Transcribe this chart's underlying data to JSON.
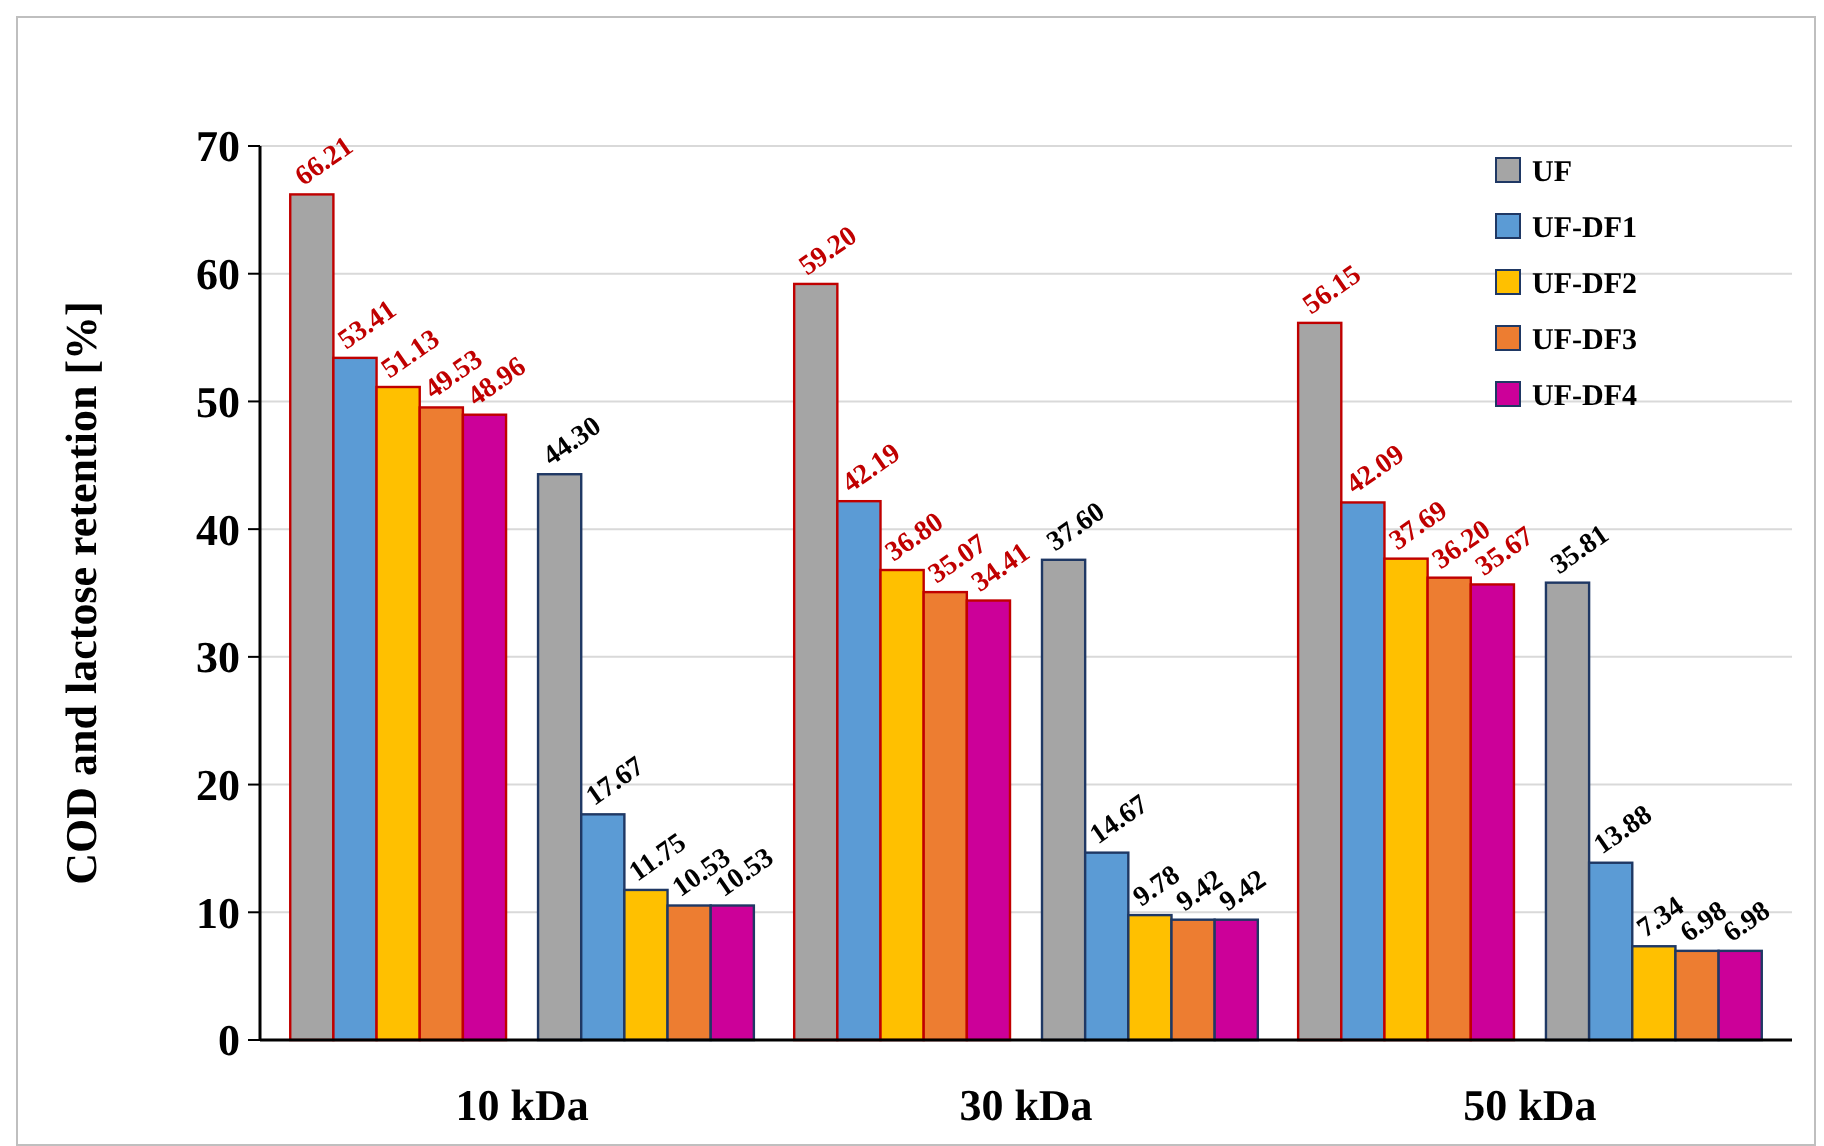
{
  "chart_data": {
    "type": "bar",
    "ylabel": "COD and lactose retention [%]",
    "categories": [
      "10 kDa",
      "30 kDa",
      "50 kDa"
    ],
    "series": [
      {
        "name": "UF",
        "color": "#a5a5a5",
        "values": [
          66.21,
          59.2,
          56.15
        ],
        "value_labels": [
          "66.21",
          "59.20",
          "56.15"
        ]
      },
      {
        "name": "UF-DF1",
        "color": "#5b9bd5",
        "values": [
          53.41,
          42.19,
          42.09
        ],
        "value_labels": [
          "53.41",
          "42.19",
          "42.09"
        ]
      },
      {
        "name": "UF-DF2",
        "color": "#ffc000",
        "values": [
          51.13,
          36.8,
          37.69
        ],
        "value_labels": [
          "51.13",
          "36.80",
          "37.69"
        ]
      },
      {
        "name": "UF-DF3",
        "color": "#ed7d31",
        "values": [
          49.53,
          35.07,
          36.2
        ],
        "value_labels": [
          "49.53",
          "35.07",
          "36.20"
        ]
      },
      {
        "name": "UF-DF4",
        "color": "#cc0099",
        "values": [
          48.96,
          34.41,
          35.67
        ],
        "value_labels": [
          "48.96",
          "34.41",
          "35.67"
        ]
      },
      {
        "color": "#a5a5a5",
        "values": [
          44.3,
          37.6,
          35.81
        ],
        "value_labels": [
          "44.30",
          "37.60",
          "35.81"
        ]
      },
      {
        "color": "#5b9bd5",
        "values": [
          17.67,
          14.67,
          13.88
        ],
        "value_labels": [
          "17.67",
          "14.67",
          "13.88"
        ]
      },
      {
        "color": "#ffc000",
        "values": [
          11.75,
          9.78,
          7.34
        ],
        "value_labels": [
          "11.75",
          "9.78",
          "7.34"
        ]
      },
      {
        "color": "#ed7d31",
        "values": [
          10.53,
          9.42,
          6.98
        ],
        "value_labels": [
          "10.53",
          "9.42",
          "6.98"
        ]
      },
      {
        "color": "#cc0099",
        "values": [
          10.53,
          9.42,
          6.98
        ],
        "value_labels": [
          "10.53",
          "9.42",
          "6.98"
        ]
      }
    ],
    "ylim": [
      0,
      70
    ],
    "yticks": [
      0,
      10,
      20,
      30,
      40,
      50,
      60,
      70
    ],
    "grid": "y",
    "legend": "top right"
  }
}
